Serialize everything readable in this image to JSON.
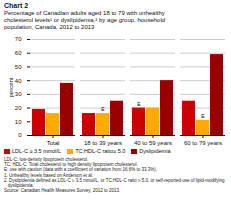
{
  "chart_data": {
    "type": "bar",
    "title": "Chart 2",
    "subtitle": [
      "Percentage of Canadian adults aged 18 to 79 with unhealthy",
      "cholesterol levels¹ or dyslipidemia,² by age group, household",
      "population, Canada, 2012 to 2013"
    ],
    "ylabel": "percent",
    "categories": [
      "Total",
      "18 to 39 years",
      "40 to 59 years",
      "60 to 79 years"
    ],
    "series": [
      {
        "name": "LDL-C ≥ 3.5 mmol/L",
        "color": "#cc0000",
        "values": [
          19,
          16,
          20,
          25
        ]
      },
      {
        "name": "TC:HDL-C ratio≥ 5.0",
        "color": "#ffaa00",
        "values": [
          16,
          16,
          20,
          11
        ]
      },
      {
        "name": "Dyslipidemia",
        "color": "#990000",
        "values": [
          38,
          25,
          40,
          59
        ]
      }
    ],
    "ylim": [
      0,
      70
    ],
    "yticks": [
      0,
      10,
      20,
      30,
      40,
      50,
      60,
      70
    ],
    "grid": true,
    "legend": "bottom",
    "annotations": [
      {
        "text": "E",
        "category": "18 to 39 years",
        "series": "TC:HDL-C ratio≥ 5.0"
      },
      {
        "text": "E",
        "category": "60 to 79 years",
        "series": "TC:HDL-C ratio≥ 5.0"
      },
      {
        "text": "E",
        "category": "40 to 59 years",
        "series": "LDL-C ≥ 3.5 mmol/L"
      }
    ],
    "footnotes": [
      "LDL-C: low-density lipoprotein cholesterol.",
      "TC: HDL-C: Total cholesterol to high density lipoprotein cholesterol.",
      "E: use with caution (data with a coefficient of variation from 16.6% to 33.3%).",
      "1. Unhealthy levels based on Anderson et al.",
      "2. Dyslipidemia defined as LDL-C ≥ 3.5 mmol/L, or TC:HDL-C ratio ≥ 5.0, or self-reported use of lipid-modifying",
      "   dyslipidemia.",
      "Source: Canadian Health Measures Survey, 2012 to 2013."
    ]
  }
}
